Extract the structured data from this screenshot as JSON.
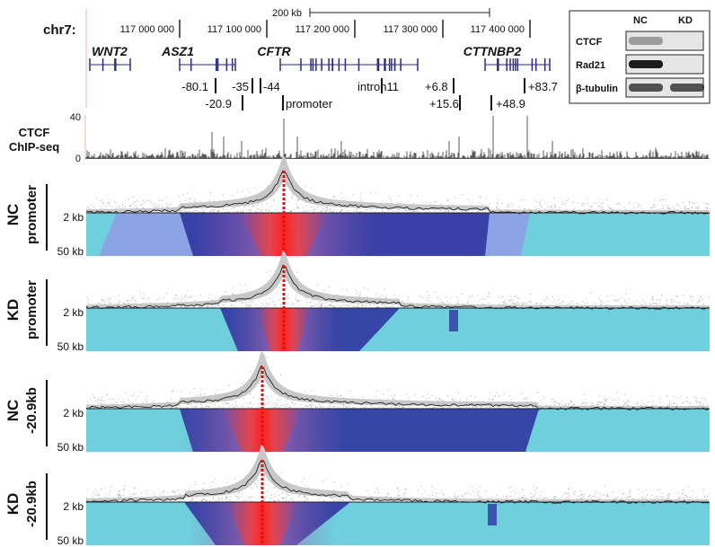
{
  "header": {
    "chrom": "chr7:",
    "scale_bar": "200 kb",
    "coordinates": [
      "117 000 000",
      "117 100 000",
      "117 200 000",
      "117 300 000",
      "117 400 000"
    ]
  },
  "genes": [
    "WNT2",
    "ASZ1",
    "CFTR",
    "CTTNBP2"
  ],
  "elements": [
    "-80.1",
    "-35",
    "-44",
    "-20.9",
    "promoter",
    "intron11",
    "+6.8",
    "+15.6",
    "+48.9",
    "+83.7"
  ],
  "western_blot": {
    "columns": [
      "NC",
      "KD"
    ],
    "rows": [
      "CTCF",
      "Rad21",
      "β-tubulin"
    ]
  },
  "chip_seq": {
    "label": [
      "CTCF",
      "ChIP-seq"
    ],
    "ticks": [
      "40",
      "0"
    ]
  },
  "panels": [
    {
      "condition": "NC",
      "viewpoint": "promoter",
      "scale_labels": [
        "2 kb",
        "50 kb"
      ]
    },
    {
      "condition": "KD",
      "viewpoint": "promoter",
      "scale_labels": [
        "2 kb",
        "50 kb"
      ]
    },
    {
      "condition": "NC",
      "viewpoint": "-20.9kb",
      "scale_labels": [
        "2 kb",
        "50 kb"
      ]
    },
    {
      "condition": "KD",
      "viewpoint": "-20.9kb",
      "scale_labels": [
        "2 kb",
        "50 kb"
      ]
    }
  ]
}
